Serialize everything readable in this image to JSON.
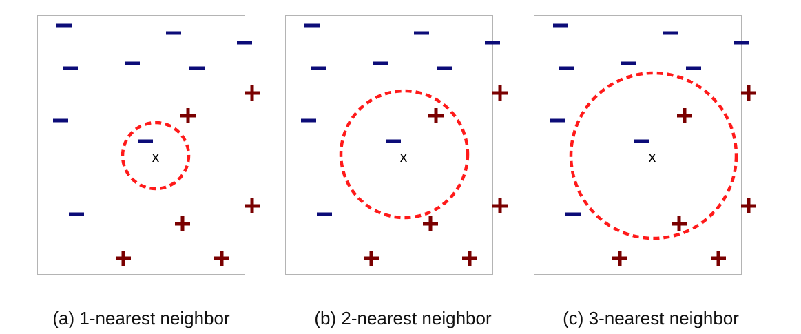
{
  "query_label": "x",
  "colors": {
    "negative": "#0c0c78",
    "positive": "#7a0000",
    "circle": "#ff1a1a"
  },
  "legend_symbols": {
    "negative": "minus",
    "positive": "plus"
  },
  "panels": [
    {
      "id": "a",
      "caption": "(a) 1-nearest neighbor",
      "k": 1
    },
    {
      "id": "b",
      "caption": "(b) 2-nearest neighbor",
      "k": 2
    },
    {
      "id": "c",
      "caption": "(c) 3-nearest neighbor",
      "k": 3
    }
  ]
}
